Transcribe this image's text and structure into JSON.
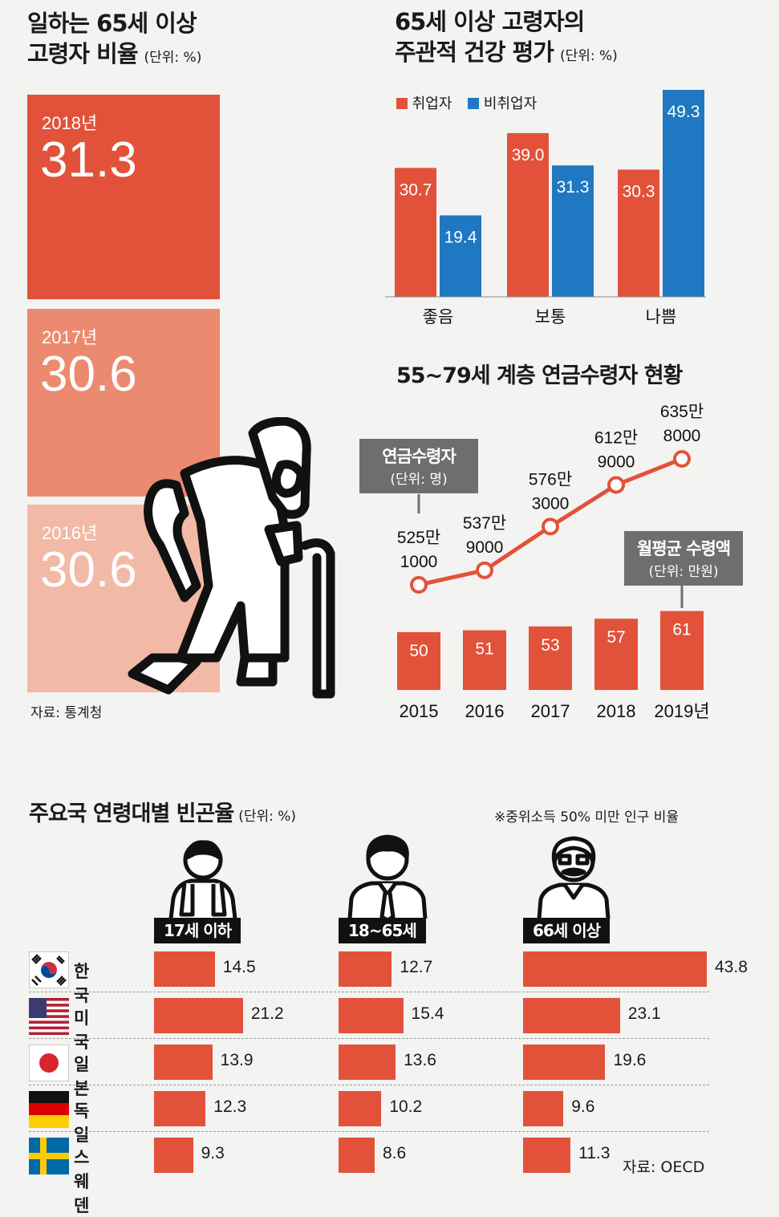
{
  "chart_data": [
    {
      "type": "bar",
      "title": "일하는 65세 이상\n고령자 비율",
      "unit": "(단위: %)",
      "categories": [
        "2018년",
        "2017년",
        "2016년"
      ],
      "values": [
        31.3,
        30.6,
        30.6
      ],
      "value_labels": [
        "31.3",
        "30.6",
        "30.6"
      ],
      "colors": [
        "#e2523b",
        "#ec8a70",
        "#f2b9a6"
      ],
      "source": "자료: 통계청"
    },
    {
      "type": "bar",
      "title": "65세 이상 고령자의\n주관적 건강 평가",
      "unit": "(단위: %)",
      "categories": [
        "좋음",
        "보통",
        "나쁨"
      ],
      "series": [
        {
          "name": "취업자",
          "color": "#e2523b",
          "values": [
            30.7,
            39.0,
            30.3
          ],
          "labels": [
            "30.7",
            "39.0",
            "30.3"
          ]
        },
        {
          "name": "비취업자",
          "color": "#1f78c1",
          "values": [
            19.4,
            31.3,
            49.3
          ],
          "labels": [
            "19.4",
            "31.3",
            "49.3"
          ]
        }
      ],
      "ylim": [
        0,
        49.3
      ]
    },
    {
      "type": "line",
      "title": "55~79세 계층 연금수령자 현황",
      "callout_title": "연금수령자",
      "callout_unit": "(단위: 명)",
      "x": [
        "2015",
        "2016",
        "2017",
        "2018",
        "2019년"
      ],
      "values": [
        5251000,
        5379000,
        5763000,
        6129000,
        6358000
      ],
      "labels": [
        [
          "525만",
          "1000"
        ],
        [
          "537만",
          "9000"
        ],
        [
          "576만",
          "3000"
        ],
        [
          "612만",
          "9000"
        ],
        [
          "635만",
          "8000"
        ]
      ],
      "color": "#e2523b"
    },
    {
      "type": "bar",
      "callout_title": "월평균 수령액",
      "callout_unit": "(단위: 만원)",
      "x": [
        "2015",
        "2016",
        "2017",
        "2018",
        "2019년"
      ],
      "values": [
        50,
        51,
        53,
        57,
        61
      ],
      "labels": [
        "50",
        "51",
        "53",
        "57",
        "61"
      ],
      "color": "#e2523b"
    },
    {
      "type": "bar",
      "orientation": "horizontal",
      "title": "주요국 연령대별 빈곤율",
      "unit": "(단위: %)",
      "note": "※중위소득 50% 미만 인구 비율",
      "source": "자료: OECD",
      "categories": [
        "한국",
        "미국",
        "일본",
        "독일",
        "스웨덴"
      ],
      "series": [
        {
          "name": "17세 이하",
          "values": [
            14.5,
            21.2,
            13.9,
            12.3,
            9.3
          ],
          "labels": [
            "14.5",
            "21.2",
            "13.9",
            "12.3",
            "9.3"
          ]
        },
        {
          "name": "18~65세",
          "values": [
            12.7,
            15.4,
            13.6,
            10.2,
            8.6
          ],
          "labels": [
            "12.7",
            "15.4",
            "13.6",
            "10.2",
            "8.6"
          ]
        },
        {
          "name": "66세 이상",
          "values": [
            43.8,
            23.1,
            19.6,
            9.6,
            11.3
          ],
          "labels": [
            "43.8",
            "23.1",
            "19.6",
            "9.6",
            "11.3"
          ]
        }
      ],
      "color": "#e2523b"
    }
  ],
  "icons": [
    "elderly-walker-icon",
    "child-icon",
    "adult-icon",
    "senior-icon",
    "flag-korea-icon",
    "flag-usa-icon",
    "flag-japan-icon",
    "flag-germany-icon",
    "flag-sweden-icon"
  ]
}
